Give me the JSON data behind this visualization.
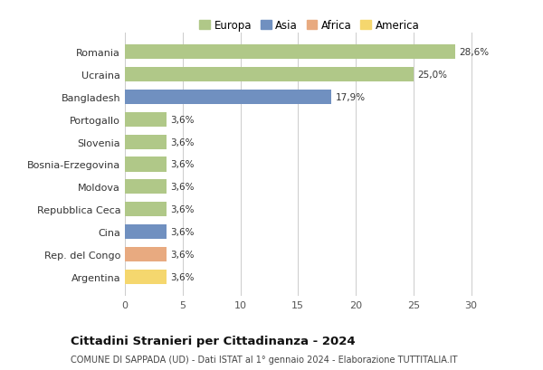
{
  "categories": [
    "Argentina",
    "Rep. del Congo",
    "Cina",
    "Repubblica Ceca",
    "Moldova",
    "Bosnia-Erzegovina",
    "Slovenia",
    "Portogallo",
    "Bangladesh",
    "Ucraina",
    "Romania"
  ],
  "values": [
    3.6,
    3.6,
    3.6,
    3.6,
    3.6,
    3.6,
    3.6,
    3.6,
    17.9,
    25.0,
    28.6
  ],
  "colors": [
    "#f5d76e",
    "#e8aa80",
    "#7090c0",
    "#b0c888",
    "#b0c888",
    "#b0c888",
    "#b0c888",
    "#b0c888",
    "#7090c0",
    "#b0c888",
    "#b0c888"
  ],
  "labels": [
    "3,6%",
    "3,6%",
    "3,6%",
    "3,6%",
    "3,6%",
    "3,6%",
    "3,6%",
    "3,6%",
    "17,9%",
    "25,0%",
    "28,6%"
  ],
  "legend_names": [
    "Europa",
    "Asia",
    "Africa",
    "America"
  ],
  "legend_colors": [
    "#b0c888",
    "#7090c0",
    "#e8aa80",
    "#f5d76e"
  ],
  "xlim": [
    0,
    32
  ],
  "xticks": [
    0,
    5,
    10,
    15,
    20,
    25,
    30
  ],
  "title": "Cittadini Stranieri per Cittadinanza - 2024",
  "subtitle": "COMUNE DI SAPPADA (UD) - Dati ISTAT al 1° gennaio 2024 - Elaborazione TUTTITALIA.IT",
  "background_color": "#ffffff",
  "grid_color": "#cccccc",
  "bar_height": 0.65
}
